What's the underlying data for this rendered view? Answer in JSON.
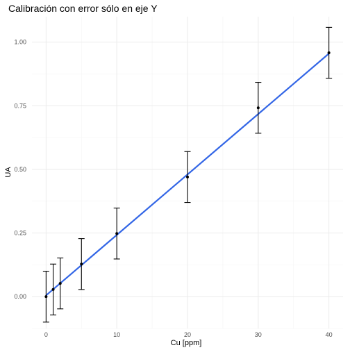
{
  "chart_data": {
    "type": "scatter",
    "title": "Calibración con error sólo en eje Y",
    "xlabel": "Cu [ppm]",
    "ylabel": "UA",
    "xlim": [
      -2,
      42
    ],
    "ylim": [
      -0.125,
      1.1
    ],
    "x_ticks": [
      0,
      10,
      20,
      30,
      40
    ],
    "x_tick_labels": [
      "0",
      "10",
      "20",
      "30",
      "40"
    ],
    "y_ticks": [
      0,
      0.25,
      0.5,
      0.75,
      1.0
    ],
    "y_tick_labels": [
      "0.00",
      "0.25",
      "0.50",
      "0.75",
      "1.00"
    ],
    "grid": true,
    "points": {
      "x": [
        0,
        1,
        2,
        5,
        10,
        20,
        30,
        40
      ],
      "y": [
        0.0,
        0.028,
        0.052,
        0.128,
        0.248,
        0.47,
        0.742,
        0.958
      ],
      "error": 0.1
    },
    "fit_line": {
      "x": [
        0,
        40
      ],
      "y": [
        0.005,
        0.955
      ]
    },
    "colors": {
      "fit": "#3366e6",
      "points": "#000000",
      "error_bars": "#000000",
      "grid": "#ebebeb"
    }
  }
}
